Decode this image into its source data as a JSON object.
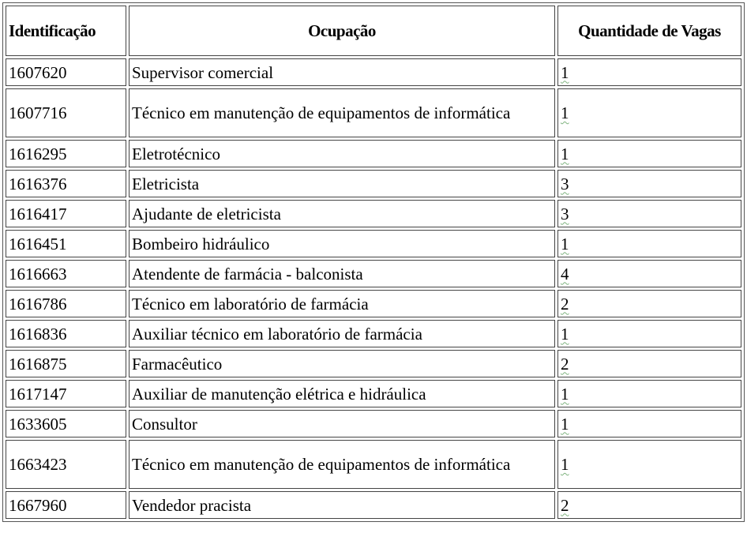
{
  "table": {
    "headers": [
      "Identificação",
      "Ocupação",
      "Quantidade de Vagas"
    ],
    "rows": [
      {
        "id": "1607620",
        "ocupacao": "Supervisor comercial",
        "vagas": "1"
      },
      {
        "id": "1607716",
        "ocupacao": "Técnico em manutenção de equipamentos de informática",
        "vagas": "1"
      },
      {
        "id": "1616295",
        "ocupacao": "Eletrotécnico",
        "vagas": "1"
      },
      {
        "id": "1616376",
        "ocupacao": "Eletricista",
        "vagas": "3"
      },
      {
        "id": "1616417",
        "ocupacao": "Ajudante de eletricista",
        "vagas": "3"
      },
      {
        "id": "1616451",
        "ocupacao": "Bombeiro hidráulico",
        "vagas": "1"
      },
      {
        "id": "1616663",
        "ocupacao": "Atendente de farmácia - balconista",
        "vagas": "4"
      },
      {
        "id": "1616786",
        "ocupacao": "Técnico em laboratório de farmácia",
        "vagas": "2"
      },
      {
        "id": "1616836",
        "ocupacao": "Auxiliar técnico em laboratório de farmácia",
        "vagas": "1"
      },
      {
        "id": "1616875",
        "ocupacao": "Farmacêutico",
        "vagas": "2"
      },
      {
        "id": "1617147",
        "ocupacao": "Auxiliar de manutenção elétrica e hidráulica",
        "vagas": "1"
      },
      {
        "id": "1633605",
        "ocupacao": "Consultor",
        "vagas": "1"
      },
      {
        "id": "1663423",
        "ocupacao": "Técnico em manutenção de equipamentos de informática",
        "vagas": "1"
      },
      {
        "id": "1667960",
        "ocupacao": "Vendedor pracista",
        "vagas": "2"
      }
    ]
  }
}
